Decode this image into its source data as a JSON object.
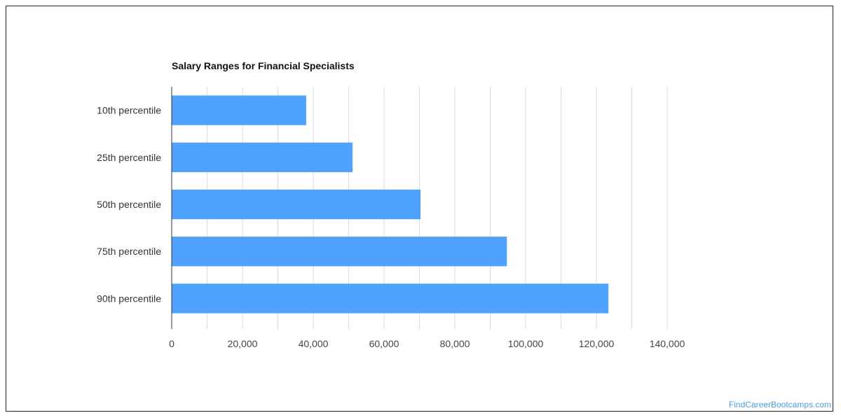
{
  "chart_data": {
    "type": "bar",
    "orientation": "horizontal",
    "title": "Salary Ranges for Financial Specialists",
    "xlabel": "",
    "ylabel": "",
    "categories": [
      "10th percentile",
      "25th percentile",
      "50th percentile",
      "75th percentile",
      "90th percentile"
    ],
    "values": [
      38000,
      51100,
      70300,
      94700,
      123400
    ],
    "xlim": [
      0,
      140000
    ],
    "xticks": [
      "0",
      "20,000",
      "40,000",
      "60,000",
      "80,000",
      "100,000",
      "120,000",
      "140,000"
    ],
    "grid": true,
    "legend": "none",
    "bar_color": "#4fa3ff",
    "grid_color": "#d9d9d9"
  },
  "watermark": {
    "text": "FindCareerBootcamps.com",
    "color": "#4a9fe0"
  }
}
